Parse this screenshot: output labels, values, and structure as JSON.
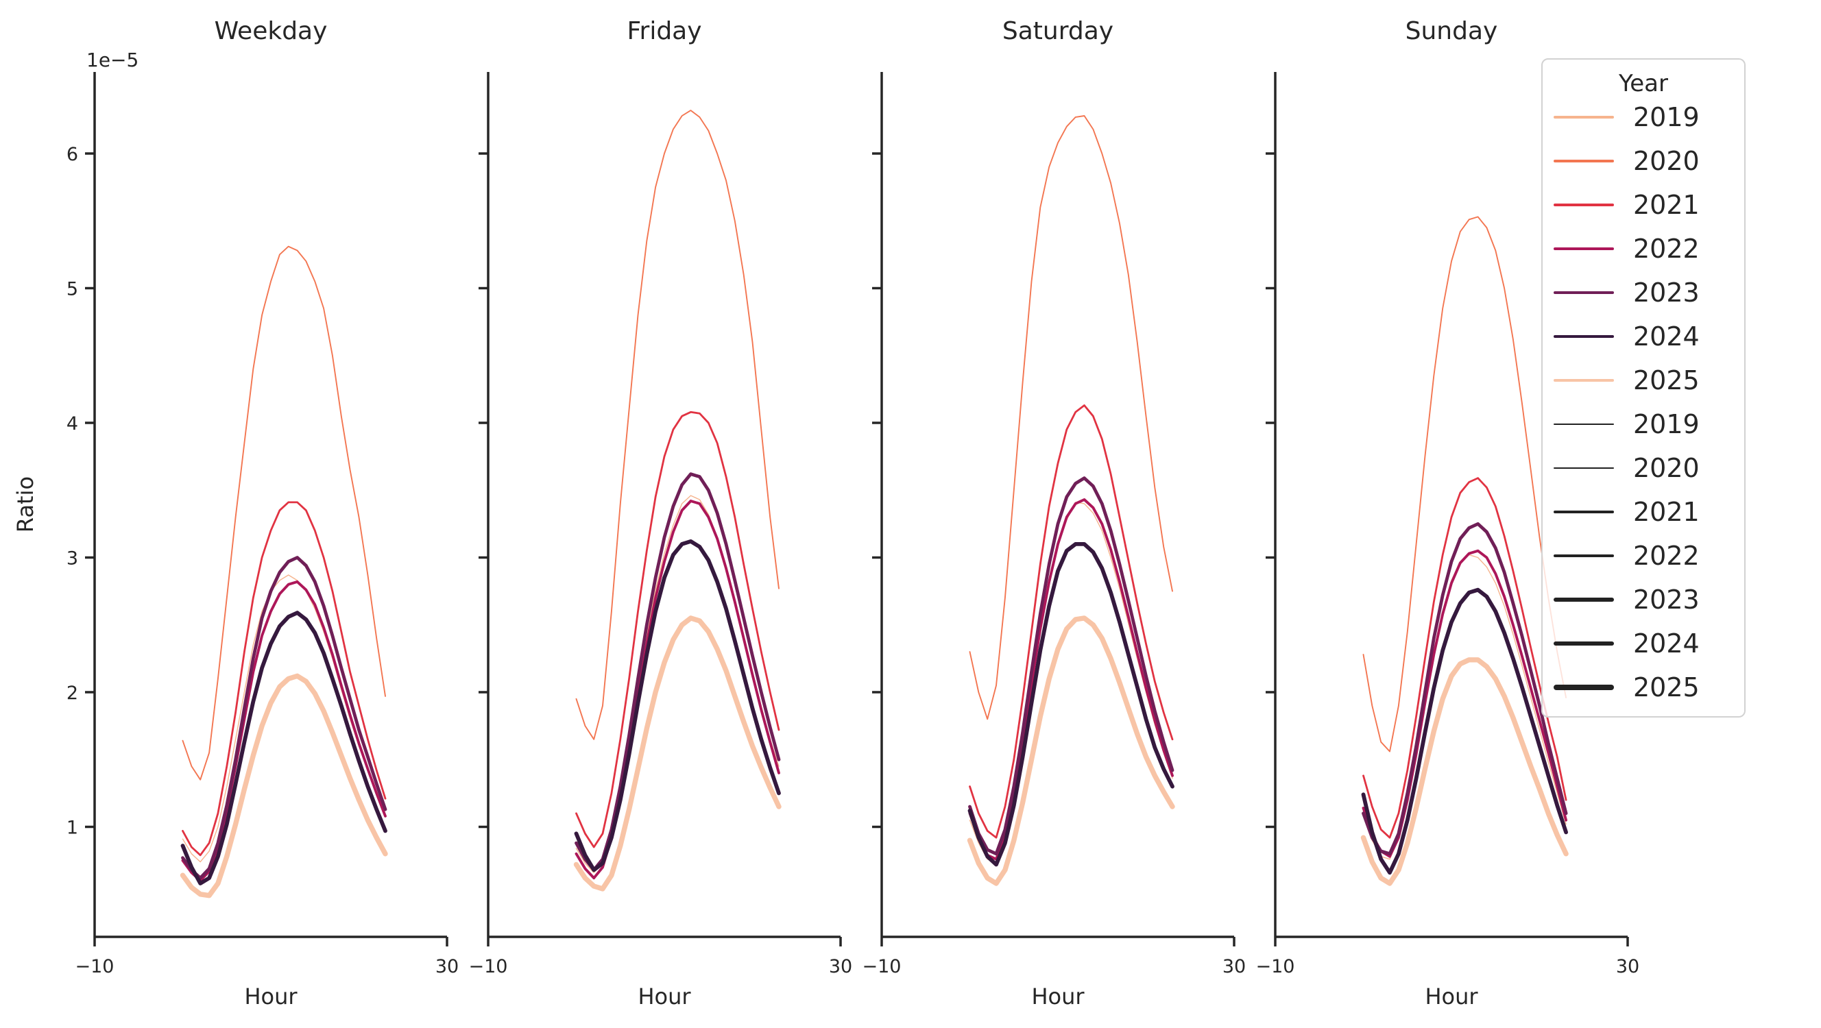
{
  "figure": {
    "background": "#ffffff",
    "axis_color": "#262626",
    "text_color": "#262626"
  },
  "legend": {
    "title": "Year",
    "background": "rgba(255,255,255,0.8)",
    "border_color": "#d2d2d2",
    "hue_entries": [
      {
        "label": "2019",
        "color": "#f6b48e",
        "lw": 3.2
      },
      {
        "label": "2020",
        "color": "#f37651",
        "lw": 3.2
      },
      {
        "label": "2021",
        "color": "#e13342",
        "lw": 3.2
      },
      {
        "label": "2022",
        "color": "#ad1759",
        "lw": 3.2
      },
      {
        "label": "2023",
        "color": "#701f57",
        "lw": 3.2
      },
      {
        "label": "2024",
        "color": "#35193e",
        "lw": 3.2
      },
      {
        "label": "2025",
        "color": "#f8c4a6",
        "lw": 3.2
      }
    ],
    "size_entries": [
      {
        "label": "2019",
        "color": "#222222",
        "lw": 1.5
      },
      {
        "label": "2020",
        "color": "#222222",
        "lw": 2.4
      },
      {
        "label": "2021",
        "color": "#222222",
        "lw": 3.4
      },
      {
        "label": "2022",
        "color": "#222222",
        "lw": 4.4
      },
      {
        "label": "2023",
        "color": "#222222",
        "lw": 5.4
      },
      {
        "label": "2024",
        "color": "#222222",
        "lw": 6.6
      },
      {
        "label": "2025",
        "color": "#222222",
        "lw": 8.0
      }
    ]
  },
  "chart_data": {
    "type": "line",
    "xlabel": "Hour",
    "ylabel": "Ratio",
    "offset_text": "1e−5",
    "x": [
      0,
      1,
      2,
      3,
      4,
      5,
      6,
      7,
      8,
      9,
      10,
      11,
      12,
      13,
      14,
      15,
      16,
      17,
      18,
      19,
      20,
      21,
      22,
      23
    ],
    "xlim": [
      -10,
      30
    ],
    "xticks": [
      "−10",
      "30"
    ],
    "yticks": [
      1,
      2,
      3,
      4,
      5,
      6
    ],
    "ylim": [
      0.18,
      6.6
    ],
    "y_units": "1e-5",
    "legend_position": "upper right",
    "grid": false,
    "panels": [
      {
        "title": "Weekday",
        "series": [
          {
            "name": "2019",
            "color": "#f6b48e",
            "lw": 1.4,
            "values": [
              0.91,
              0.8,
              0.74,
              0.82,
              1.0,
              1.3,
              1.65,
              2.0,
              2.35,
              2.6,
              2.75,
              2.83,
              2.87,
              2.83,
              2.75,
              2.62,
              2.45,
              2.25,
              2.02,
              1.8,
              1.6,
              1.42,
              1.26,
              1.12
            ]
          },
          {
            "name": "2020",
            "color": "#f37651",
            "lw": 1.9,
            "values": [
              1.64,
              1.45,
              1.35,
              1.55,
              2.1,
              2.7,
              3.3,
              3.85,
              4.4,
              4.8,
              5.05,
              5.25,
              5.31,
              5.28,
              5.2,
              5.05,
              4.85,
              4.5,
              4.05,
              3.65,
              3.3,
              2.87,
              2.4,
              1.97
            ]
          },
          {
            "name": "2021",
            "color": "#e13342",
            "lw": 2.8,
            "values": [
              0.97,
              0.85,
              0.79,
              0.88,
              1.1,
              1.45,
              1.85,
              2.3,
              2.7,
              3.0,
              3.2,
              3.35,
              3.41,
              3.41,
              3.35,
              3.2,
              3.0,
              2.75,
              2.45,
              2.15,
              1.9,
              1.65,
              1.42,
              1.21
            ]
          },
          {
            "name": "2022",
            "color": "#ad1759",
            "lw": 3.9,
            "values": [
              0.75,
              0.66,
              0.6,
              0.67,
              0.85,
              1.12,
              1.45,
              1.8,
              2.15,
              2.42,
              2.6,
              2.73,
              2.8,
              2.82,
              2.76,
              2.65,
              2.48,
              2.28,
              2.05,
              1.83,
              1.62,
              1.43,
              1.25,
              1.08
            ]
          },
          {
            "name": "2023",
            "color": "#701f57",
            "lw": 4.8,
            "values": [
              0.77,
              0.68,
              0.62,
              0.69,
              0.88,
              1.16,
              1.5,
              1.88,
              2.25,
              2.55,
              2.75,
              2.89,
              2.97,
              3.0,
              2.94,
              2.82,
              2.64,
              2.42,
              2.18,
              1.95,
              1.72,
              1.52,
              1.32,
              1.13
            ]
          },
          {
            "name": "2024",
            "color": "#35193e",
            "lw": 5.8,
            "values": [
              0.86,
              0.7,
              0.58,
              0.62,
              0.78,
              1.02,
              1.32,
              1.63,
              1.93,
              2.18,
              2.36,
              2.49,
              2.56,
              2.59,
              2.54,
              2.44,
              2.29,
              2.1,
              1.9,
              1.69,
              1.49,
              1.3,
              1.13,
              0.97
            ]
          },
          {
            "name": "2025",
            "color": "#f8c4a6",
            "lw": 7.4,
            "values": [
              0.64,
              0.55,
              0.5,
              0.49,
              0.58,
              0.78,
              1.02,
              1.28,
              1.53,
              1.75,
              1.92,
              2.04,
              2.1,
              2.12,
              2.08,
              1.99,
              1.86,
              1.7,
              1.53,
              1.36,
              1.2,
              1.05,
              0.92,
              0.8
            ]
          }
        ]
      },
      {
        "title": "Friday",
        "series": [
          {
            "name": "2019",
            "color": "#f6b48e",
            "lw": 1.4,
            "values": [
              0.84,
              0.73,
              0.66,
              0.74,
              0.96,
              1.26,
              1.63,
              2.03,
              2.42,
              2.76,
              3.03,
              3.24,
              3.4,
              3.46,
              3.43,
              3.32,
              3.15,
              2.93,
              2.68,
              2.41,
              2.14,
              1.88,
              1.65,
              1.45
            ]
          },
          {
            "name": "2020",
            "color": "#f37651",
            "lw": 1.9,
            "values": [
              1.95,
              1.75,
              1.65,
              1.9,
              2.6,
              3.4,
              4.1,
              4.8,
              5.35,
              5.75,
              6.0,
              6.18,
              6.28,
              6.32,
              6.27,
              6.17,
              6.0,
              5.8,
              5.5,
              5.1,
              4.6,
              3.95,
              3.3,
              2.77
            ]
          },
          {
            "name": "2021",
            "color": "#e13342",
            "lw": 2.8,
            "values": [
              1.1,
              0.95,
              0.85,
              0.95,
              1.25,
              1.65,
              2.1,
              2.6,
              3.05,
              3.45,
              3.75,
              3.95,
              4.05,
              4.08,
              4.07,
              4.0,
              3.85,
              3.6,
              3.3,
              2.95,
              2.62,
              2.3,
              2.0,
              1.72
            ]
          },
          {
            "name": "2022",
            "color": "#ad1759",
            "lw": 3.9,
            "values": [
              0.8,
              0.69,
              0.62,
              0.7,
              0.92,
              1.22,
              1.58,
              1.98,
              2.36,
              2.7,
              2.97,
              3.19,
              3.35,
              3.42,
              3.4,
              3.3,
              3.14,
              2.92,
              2.67,
              2.4,
              2.13,
              1.87,
              1.63,
              1.4
            ]
          },
          {
            "name": "2023",
            "color": "#701f57",
            "lw": 4.8,
            "values": [
              0.88,
              0.76,
              0.68,
              0.76,
              0.98,
              1.3,
              1.68,
              2.1,
              2.5,
              2.85,
              3.15,
              3.38,
              3.54,
              3.62,
              3.6,
              3.5,
              3.33,
              3.1,
              2.83,
              2.55,
              2.27,
              2.0,
              1.74,
              1.5
            ]
          },
          {
            "name": "2024",
            "color": "#35193e",
            "lw": 5.8,
            "values": [
              0.95,
              0.79,
              0.68,
              0.73,
              0.92,
              1.2,
              1.54,
              1.92,
              2.28,
              2.6,
              2.85,
              3.02,
              3.1,
              3.12,
              3.08,
              2.98,
              2.82,
              2.62,
              2.38,
              2.13,
              1.88,
              1.65,
              1.44,
              1.25
            ]
          },
          {
            "name": "2025",
            "color": "#f8c4a6",
            "lw": 7.4,
            "values": [
              0.72,
              0.62,
              0.56,
              0.54,
              0.64,
              0.86,
              1.13,
              1.43,
              1.73,
              2.0,
              2.22,
              2.39,
              2.5,
              2.55,
              2.53,
              2.45,
              2.32,
              2.16,
              1.97,
              1.78,
              1.6,
              1.44,
              1.29,
              1.15
            ]
          }
        ]
      },
      {
        "title": "Saturday",
        "series": [
          {
            "name": "2019",
            "color": "#f6b48e",
            "lw": 1.4,
            "values": [
              1.05,
              0.88,
              0.76,
              0.74,
              0.92,
              1.24,
              1.62,
              2.05,
              2.46,
              2.81,
              3.09,
              3.28,
              3.41,
              3.4,
              3.33,
              3.2,
              3.0,
              2.77,
              2.51,
              2.25,
              2.0,
              1.76,
              1.55,
              1.36
            ]
          },
          {
            "name": "2020",
            "color": "#f37651",
            "lw": 1.9,
            "values": [
              2.3,
              2.0,
              1.8,
              2.05,
              2.7,
              3.5,
              4.3,
              5.05,
              5.6,
              5.9,
              6.08,
              6.2,
              6.27,
              6.28,
              6.18,
              6.0,
              5.78,
              5.48,
              5.1,
              4.6,
              4.05,
              3.52,
              3.08,
              2.75
            ]
          },
          {
            "name": "2021",
            "color": "#e13342",
            "lw": 2.8,
            "values": [
              1.3,
              1.1,
              0.97,
              0.92,
              1.15,
              1.5,
              1.95,
              2.45,
              2.95,
              3.38,
              3.7,
              3.95,
              4.08,
              4.13,
              4.05,
              3.88,
              3.62,
              3.3,
              2.98,
              2.66,
              2.36,
              2.08,
              1.85,
              1.65
            ]
          },
          {
            "name": "2022",
            "color": "#ad1759",
            "lw": 3.9,
            "values": [
              1.1,
              0.92,
              0.79,
              0.76,
              0.94,
              1.25,
              1.63,
              2.06,
              2.47,
              2.82,
              3.1,
              3.3,
              3.4,
              3.43,
              3.37,
              3.25,
              3.06,
              2.82,
              2.56,
              2.29,
              2.03,
              1.79,
              1.57,
              1.38
            ]
          },
          {
            "name": "2023",
            "color": "#701f57",
            "lw": 4.8,
            "values": [
              1.15,
              0.95,
              0.83,
              0.8,
              0.98,
              1.3,
              1.7,
              2.15,
              2.58,
              2.95,
              3.25,
              3.45,
              3.55,
              3.59,
              3.53,
              3.4,
              3.2,
              2.95,
              2.68,
              2.4,
              2.12,
              1.86,
              1.63,
              1.42
            ]
          },
          {
            "name": "2024",
            "color": "#35193e",
            "lw": 5.8,
            "values": [
              1.12,
              0.92,
              0.78,
              0.72,
              0.88,
              1.16,
              1.52,
              1.92,
              2.31,
              2.64,
              2.9,
              3.05,
              3.1,
              3.1,
              3.04,
              2.92,
              2.74,
              2.52,
              2.28,
              2.04,
              1.8,
              1.59,
              1.43,
              1.3
            ]
          },
          {
            "name": "2025",
            "color": "#f8c4a6",
            "lw": 7.4,
            "values": [
              0.9,
              0.73,
              0.62,
              0.58,
              0.68,
              0.9,
              1.18,
              1.5,
              1.82,
              2.1,
              2.32,
              2.47,
              2.54,
              2.55,
              2.5,
              2.4,
              2.25,
              2.07,
              1.88,
              1.69,
              1.52,
              1.38,
              1.26,
              1.15
            ]
          }
        ]
      },
      {
        "title": "Sunday",
        "series": [
          {
            "name": "2019",
            "color": "#f6b48e",
            "lw": 1.4,
            "values": [
              1.08,
              0.9,
              0.78,
              0.76,
              0.92,
              1.2,
              1.55,
              1.93,
              2.3,
              2.6,
              2.83,
              2.97,
              3.02,
              3.0,
              2.93,
              2.81,
              2.64,
              2.43,
              2.2,
              1.96,
              1.72,
              1.48,
              1.25,
              1.02
            ]
          },
          {
            "name": "2020",
            "color": "#f37651",
            "lw": 1.9,
            "values": [
              2.28,
              1.9,
              1.63,
              1.56,
              1.9,
              2.45,
              3.1,
              3.75,
              4.35,
              4.85,
              5.2,
              5.42,
              5.51,
              5.53,
              5.45,
              5.28,
              5.0,
              4.62,
              4.15,
              3.65,
              3.15,
              2.7,
              2.3,
              1.96
            ]
          },
          {
            "name": "2021",
            "color": "#e13342",
            "lw": 2.8,
            "values": [
              1.38,
              1.15,
              0.98,
              0.92,
              1.1,
              1.42,
              1.82,
              2.25,
              2.67,
              3.02,
              3.3,
              3.48,
              3.56,
              3.59,
              3.52,
              3.38,
              3.16,
              2.9,
              2.62,
              2.33,
              2.05,
              1.78,
              1.52,
              1.2
            ]
          },
          {
            "name": "2022",
            "color": "#ad1759",
            "lw": 3.9,
            "values": [
              1.14,
              0.94,
              0.82,
              0.78,
              0.92,
              1.2,
              1.54,
              1.92,
              2.28,
              2.58,
              2.81,
              2.96,
              3.03,
              3.05,
              3.0,
              2.88,
              2.71,
              2.5,
              2.27,
              2.03,
              1.79,
              1.55,
              1.3,
              1.05
            ]
          },
          {
            "name": "2023",
            "color": "#701f57",
            "lw": 4.8,
            "values": [
              1.1,
              0.92,
              0.82,
              0.8,
              0.95,
              1.25,
              1.6,
              2.0,
              2.4,
              2.72,
              2.97,
              3.14,
              3.22,
              3.25,
              3.19,
              3.07,
              2.89,
              2.66,
              2.42,
              2.16,
              1.9,
              1.62,
              1.36,
              1.1
            ]
          },
          {
            "name": "2024",
            "color": "#35193e",
            "lw": 5.8,
            "values": [
              1.24,
              0.96,
              0.76,
              0.66,
              0.8,
              1.05,
              1.36,
              1.7,
              2.03,
              2.31,
              2.52,
              2.66,
              2.74,
              2.76,
              2.71,
              2.6,
              2.44,
              2.25,
              2.04,
              1.82,
              1.6,
              1.38,
              1.16,
              0.96
            ]
          },
          {
            "name": "2025",
            "color": "#f8c4a6",
            "lw": 7.4,
            "values": [
              0.92,
              0.74,
              0.62,
              0.58,
              0.68,
              0.88,
              1.14,
              1.43,
              1.71,
              1.95,
              2.12,
              2.21,
              2.24,
              2.24,
              2.19,
              2.1,
              1.97,
              1.81,
              1.63,
              1.45,
              1.28,
              1.1,
              0.94,
              0.8
            ]
          }
        ]
      }
    ]
  }
}
